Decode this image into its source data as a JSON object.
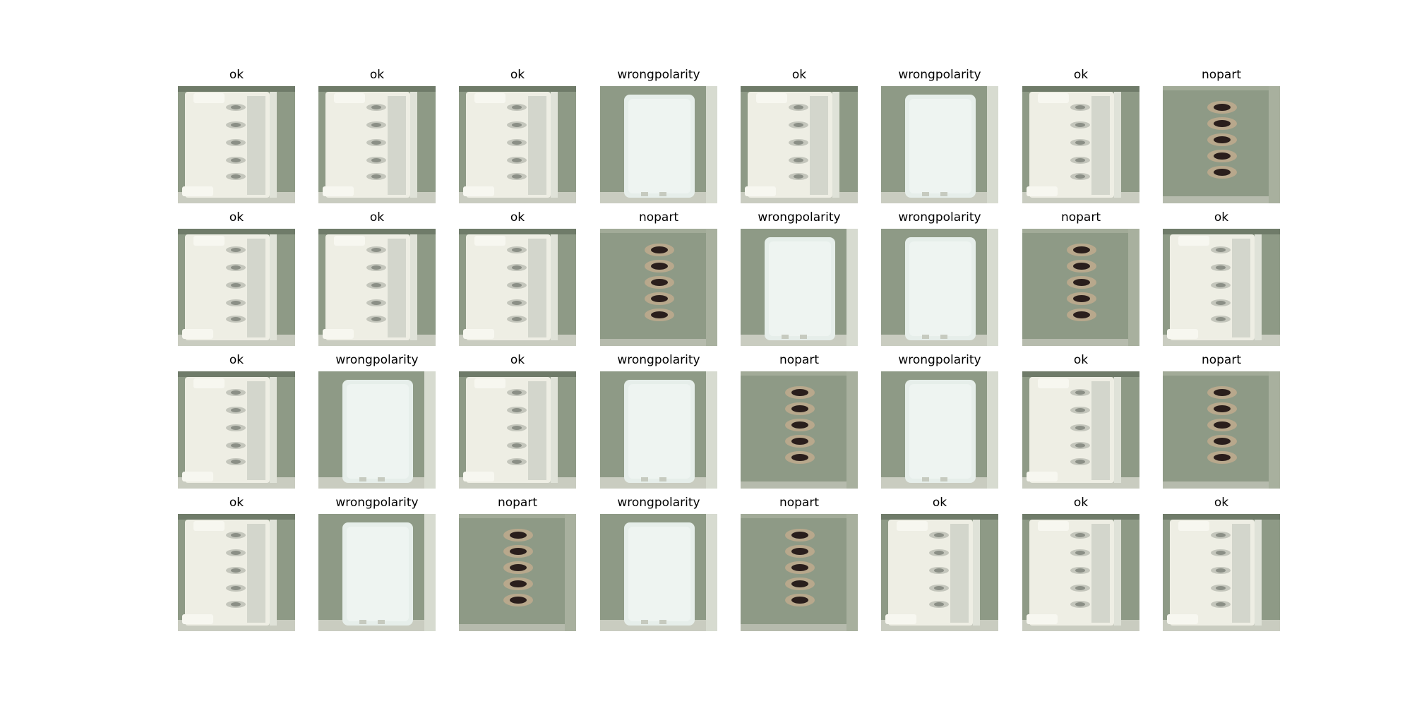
{
  "grid": {
    "rows": 4,
    "cols": 8,
    "cells": [
      {
        "label": "ok"
      },
      {
        "label": "ok"
      },
      {
        "label": "ok"
      },
      {
        "label": "wrongpolarity"
      },
      {
        "label": "ok"
      },
      {
        "label": "wrongpolarity"
      },
      {
        "label": "ok"
      },
      {
        "label": "nopart"
      },
      {
        "label": "ok"
      },
      {
        "label": "ok"
      },
      {
        "label": "ok"
      },
      {
        "label": "nopart"
      },
      {
        "label": "wrongpolarity"
      },
      {
        "label": "wrongpolarity"
      },
      {
        "label": "nopart"
      },
      {
        "label": "ok"
      },
      {
        "label": "ok"
      },
      {
        "label": "wrongpolarity"
      },
      {
        "label": "ok"
      },
      {
        "label": "wrongpolarity"
      },
      {
        "label": "nopart"
      },
      {
        "label": "wrongpolarity"
      },
      {
        "label": "ok"
      },
      {
        "label": "nopart"
      },
      {
        "label": "ok"
      },
      {
        "label": "wrongpolarity"
      },
      {
        "label": "nopart"
      },
      {
        "label": "wrongpolarity"
      },
      {
        "label": "nopart"
      },
      {
        "label": "ok"
      },
      {
        "label": "ok"
      },
      {
        "label": "ok"
      }
    ]
  },
  "colors": {
    "board": "#8e9a86",
    "board_dark": "#6f7b69",
    "connector": "#eeeee4",
    "connector_shade": "#d3d6cc",
    "cover": "#e6eeea",
    "hole_ring": "#b8a88c",
    "hole": "#2a1e1c"
  }
}
